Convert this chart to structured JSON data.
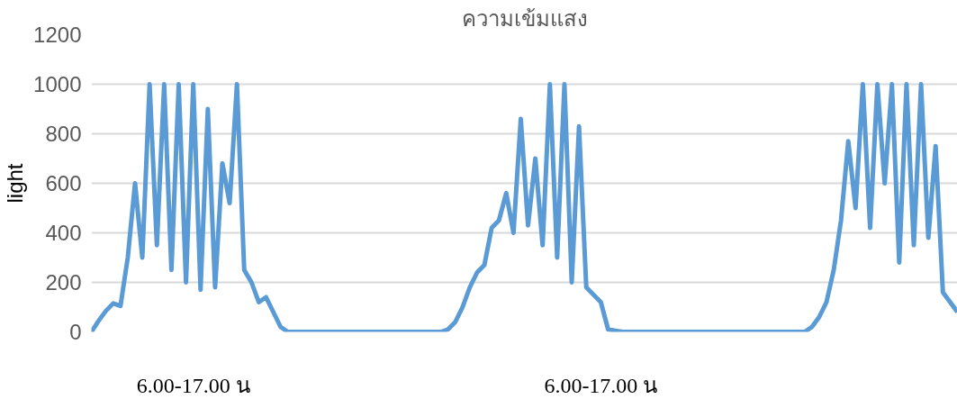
{
  "chart_data": {
    "type": "line",
    "title": "ความเข้มแสง",
    "ylabel": "light",
    "categories": [
      null,
      null,
      null,
      null,
      null,
      null,
      null,
      null,
      null,
      null,
      null,
      null,
      null,
      null,
      "6.00-17.00 น",
      null,
      null,
      null,
      null,
      null,
      null,
      null,
      null,
      null,
      null,
      null,
      null,
      null,
      null,
      null,
      null,
      null,
      null,
      null,
      null,
      null,
      null,
      null,
      null,
      null,
      null,
      null,
      null,
      null,
      null,
      null,
      null,
      null,
      null,
      null,
      null,
      null,
      null,
      null,
      null,
      null,
      null,
      null,
      null,
      null,
      null,
      null,
      null,
      null,
      null,
      null,
      null,
      null,
      null,
      null,
      "6.00-17.00 น",
      null,
      null,
      null,
      null,
      null,
      null,
      null,
      null,
      null,
      null,
      null,
      null,
      null,
      null,
      null,
      null,
      null,
      null,
      null,
      null,
      null,
      null,
      null,
      null,
      null,
      null,
      null,
      null,
      null,
      null,
      null,
      null,
      null,
      null,
      null,
      null,
      null,
      null,
      null,
      null,
      null,
      null,
      null,
      null,
      null,
      null,
      null,
      null,
      null
    ],
    "series": [
      {
        "color": "#5b9bd5",
        "values": [
          0,
          45,
          85,
          115,
          105,
          300,
          600,
          300,
          1000,
          350,
          1000,
          250,
          1000,
          200,
          1000,
          170,
          900,
          180,
          680,
          520,
          1000,
          250,
          200,
          120,
          140,
          80,
          20,
          0,
          0,
          0,
          0,
          0,
          0,
          0,
          0,
          0,
          0,
          0,
          0,
          0,
          0,
          0,
          0,
          0,
          0,
          0,
          0,
          0,
          0,
          10,
          40,
          100,
          180,
          240,
          270,
          420,
          450,
          560,
          400,
          860,
          430,
          700,
          350,
          1000,
          300,
          1000,
          200,
          830,
          180,
          150,
          120,
          10,
          5,
          0,
          0,
          0,
          0,
          0,
          0,
          0,
          0,
          0,
          0,
          0,
          0,
          0,
          0,
          0,
          0,
          0,
          0,
          0,
          0,
          0,
          0,
          0,
          0,
          0,
          0,
          20,
          60,
          120,
          250,
          450,
          770,
          500,
          1000,
          420,
          1000,
          600,
          1000,
          280,
          1000,
          350,
          1000,
          380,
          750,
          160,
          120,
          80
        ]
      }
    ],
    "ylim": [
      0,
      1200
    ],
    "yticks": [
      0,
      200,
      400,
      600,
      800,
      1000,
      1200
    ],
    "grid": "y",
    "marker": "none",
    "line_style": "solid"
  }
}
